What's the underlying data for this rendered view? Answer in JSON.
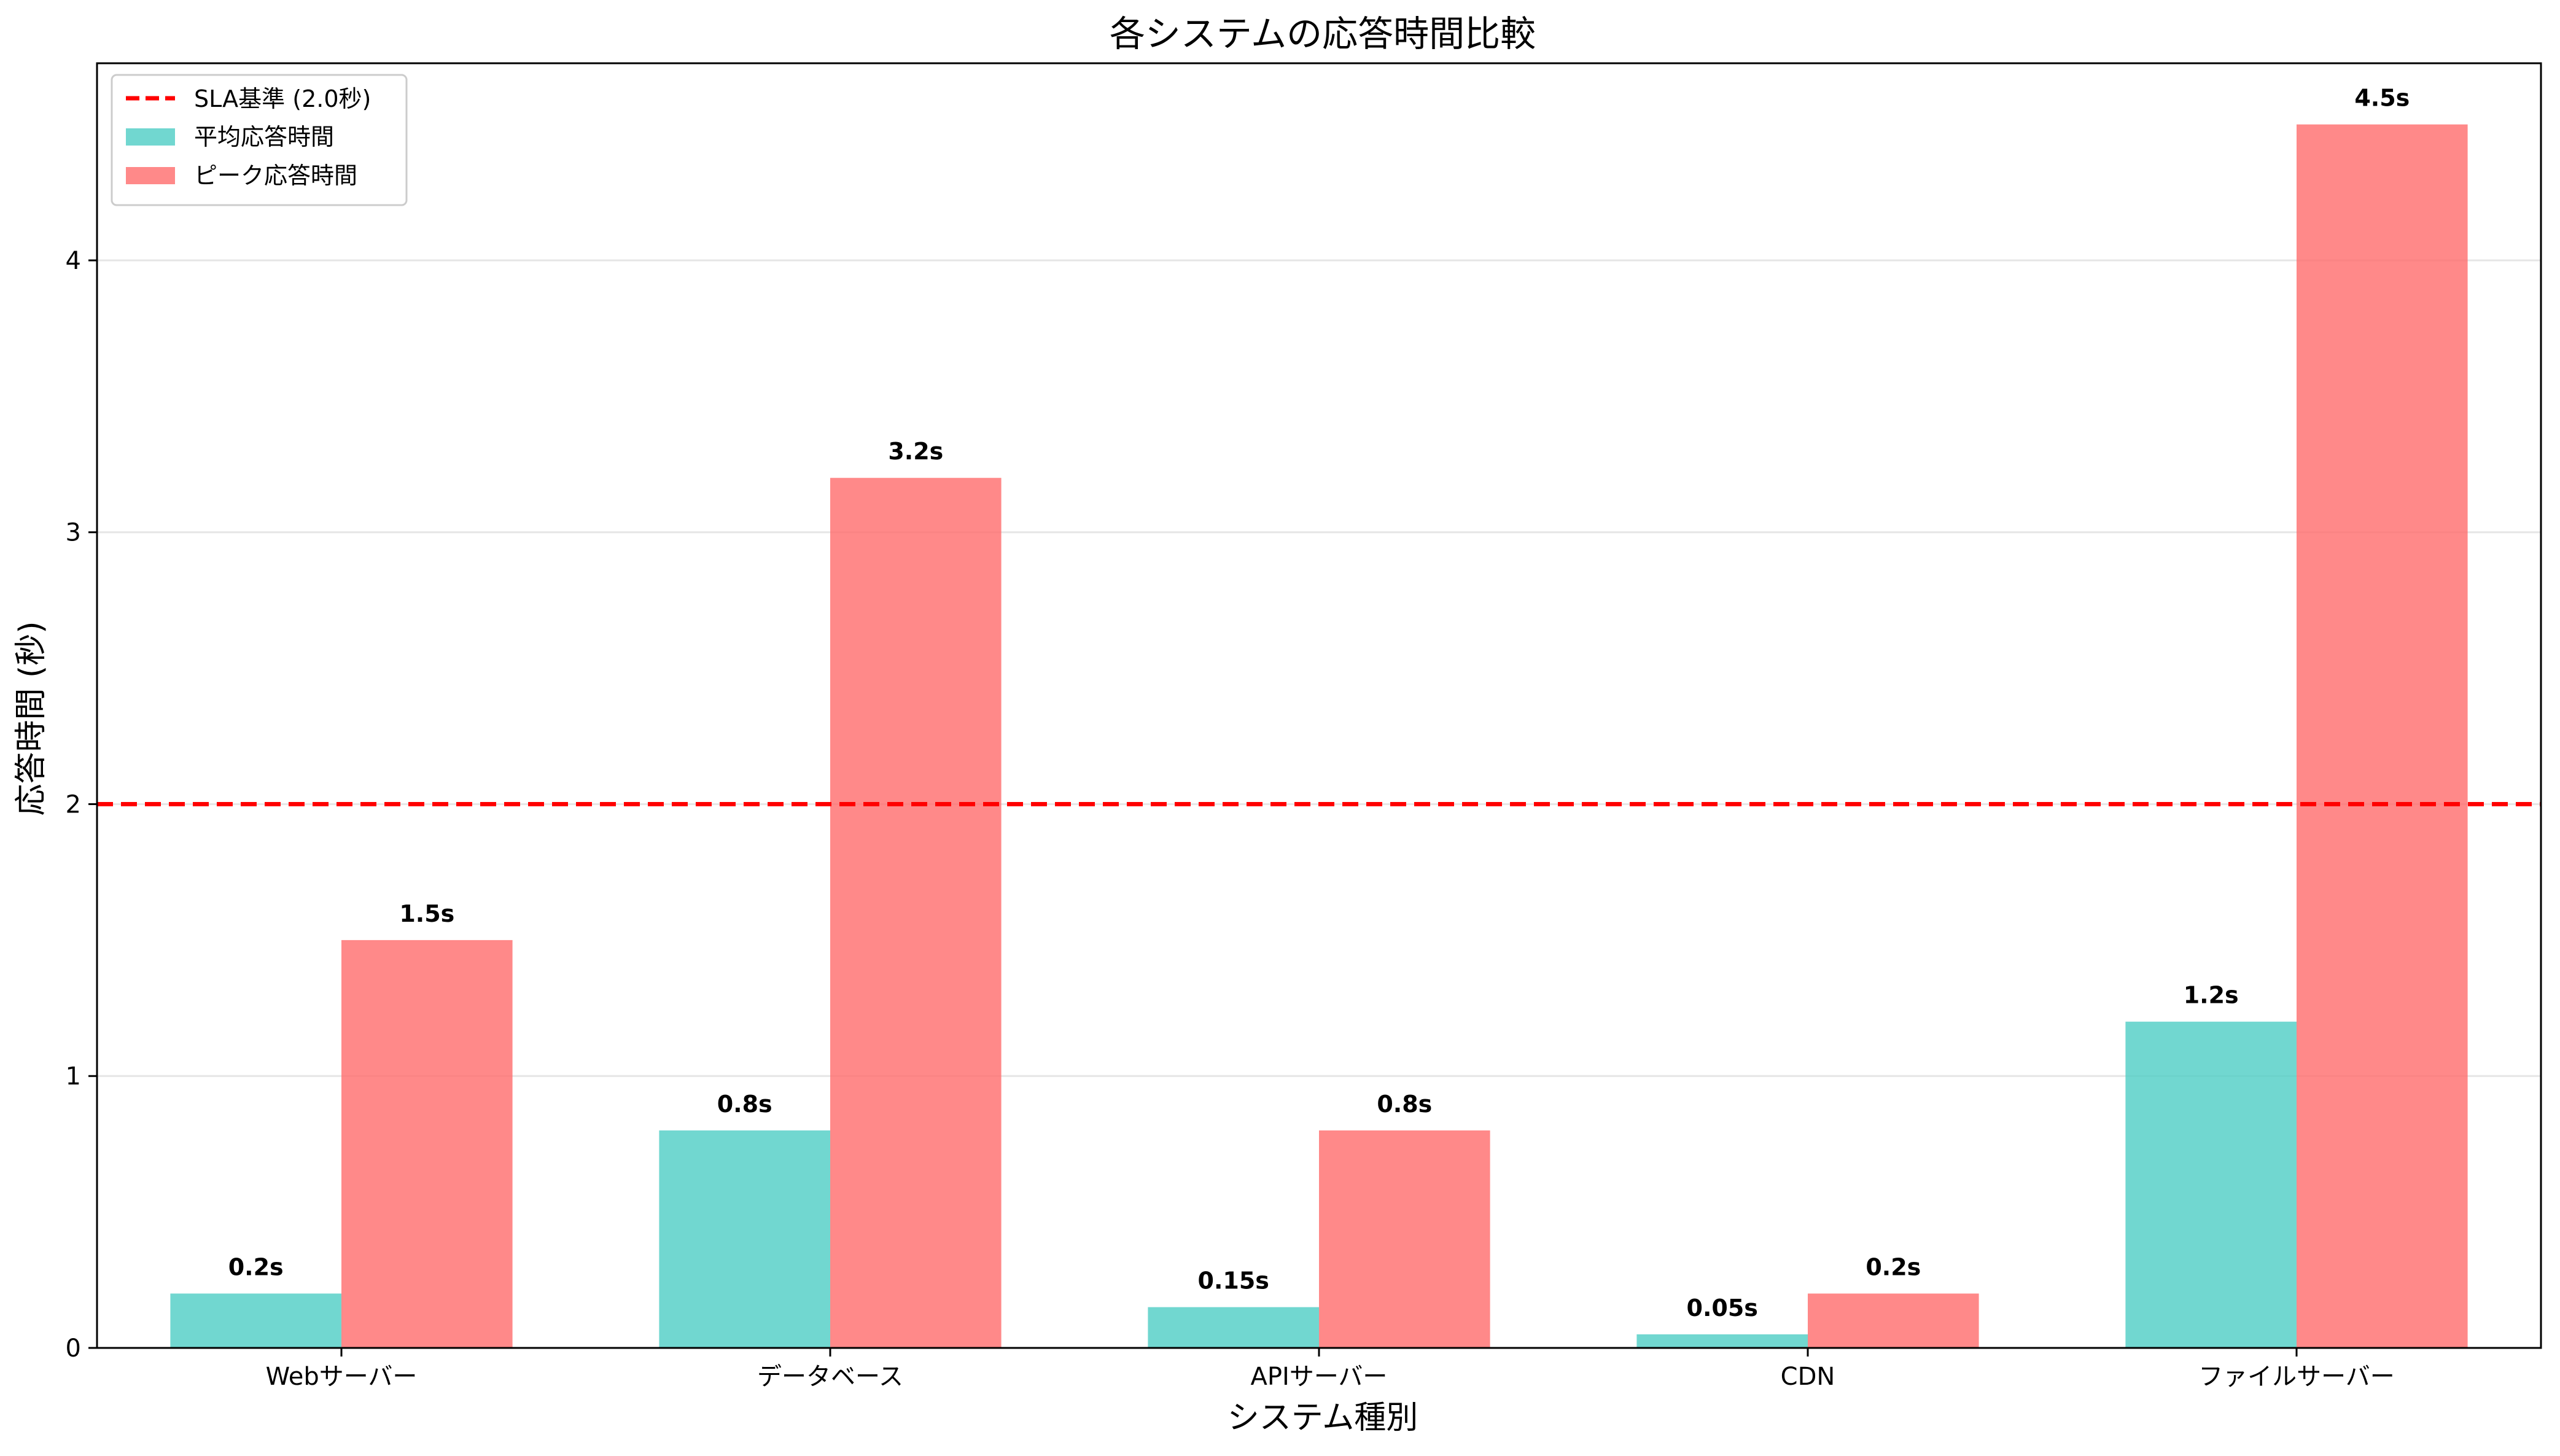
{
  "chart_data": {
    "type": "bar",
    "title": "各システムの応答時間比較",
    "xlabel": "システム種別",
    "ylabel": "応答時間 (秒)",
    "categories": [
      "Webサーバー",
      "データベース",
      "APIサーバー",
      "CDN",
      "ファイルサーバー"
    ],
    "series": [
      {
        "name": "平均応答時間",
        "color": "#4ECDC4",
        "values": [
          0.2,
          0.8,
          0.15,
          0.05,
          1.2
        ],
        "labels": [
          "0.2s",
          "0.8s",
          "0.15s",
          "0.05s",
          "1.2s"
        ]
      },
      {
        "name": "ピーク応答時間",
        "color": "#FF6B6B",
        "values": [
          1.5,
          3.2,
          0.8,
          0.2,
          4.5
        ],
        "labels": [
          "1.5s",
          "3.2s",
          "0.8s",
          "0.2s",
          "4.5s"
        ]
      }
    ],
    "reference_line": {
      "name": "SLA基準 (2.0秒)",
      "value": 2.0,
      "color": "#FF0000",
      "style": "dashed"
    },
    "ylim": [
      0,
      4.725
    ],
    "yticks": [
      0,
      1,
      2,
      3,
      4
    ],
    "grid": "y-only",
    "legend_position": "upper-left"
  }
}
